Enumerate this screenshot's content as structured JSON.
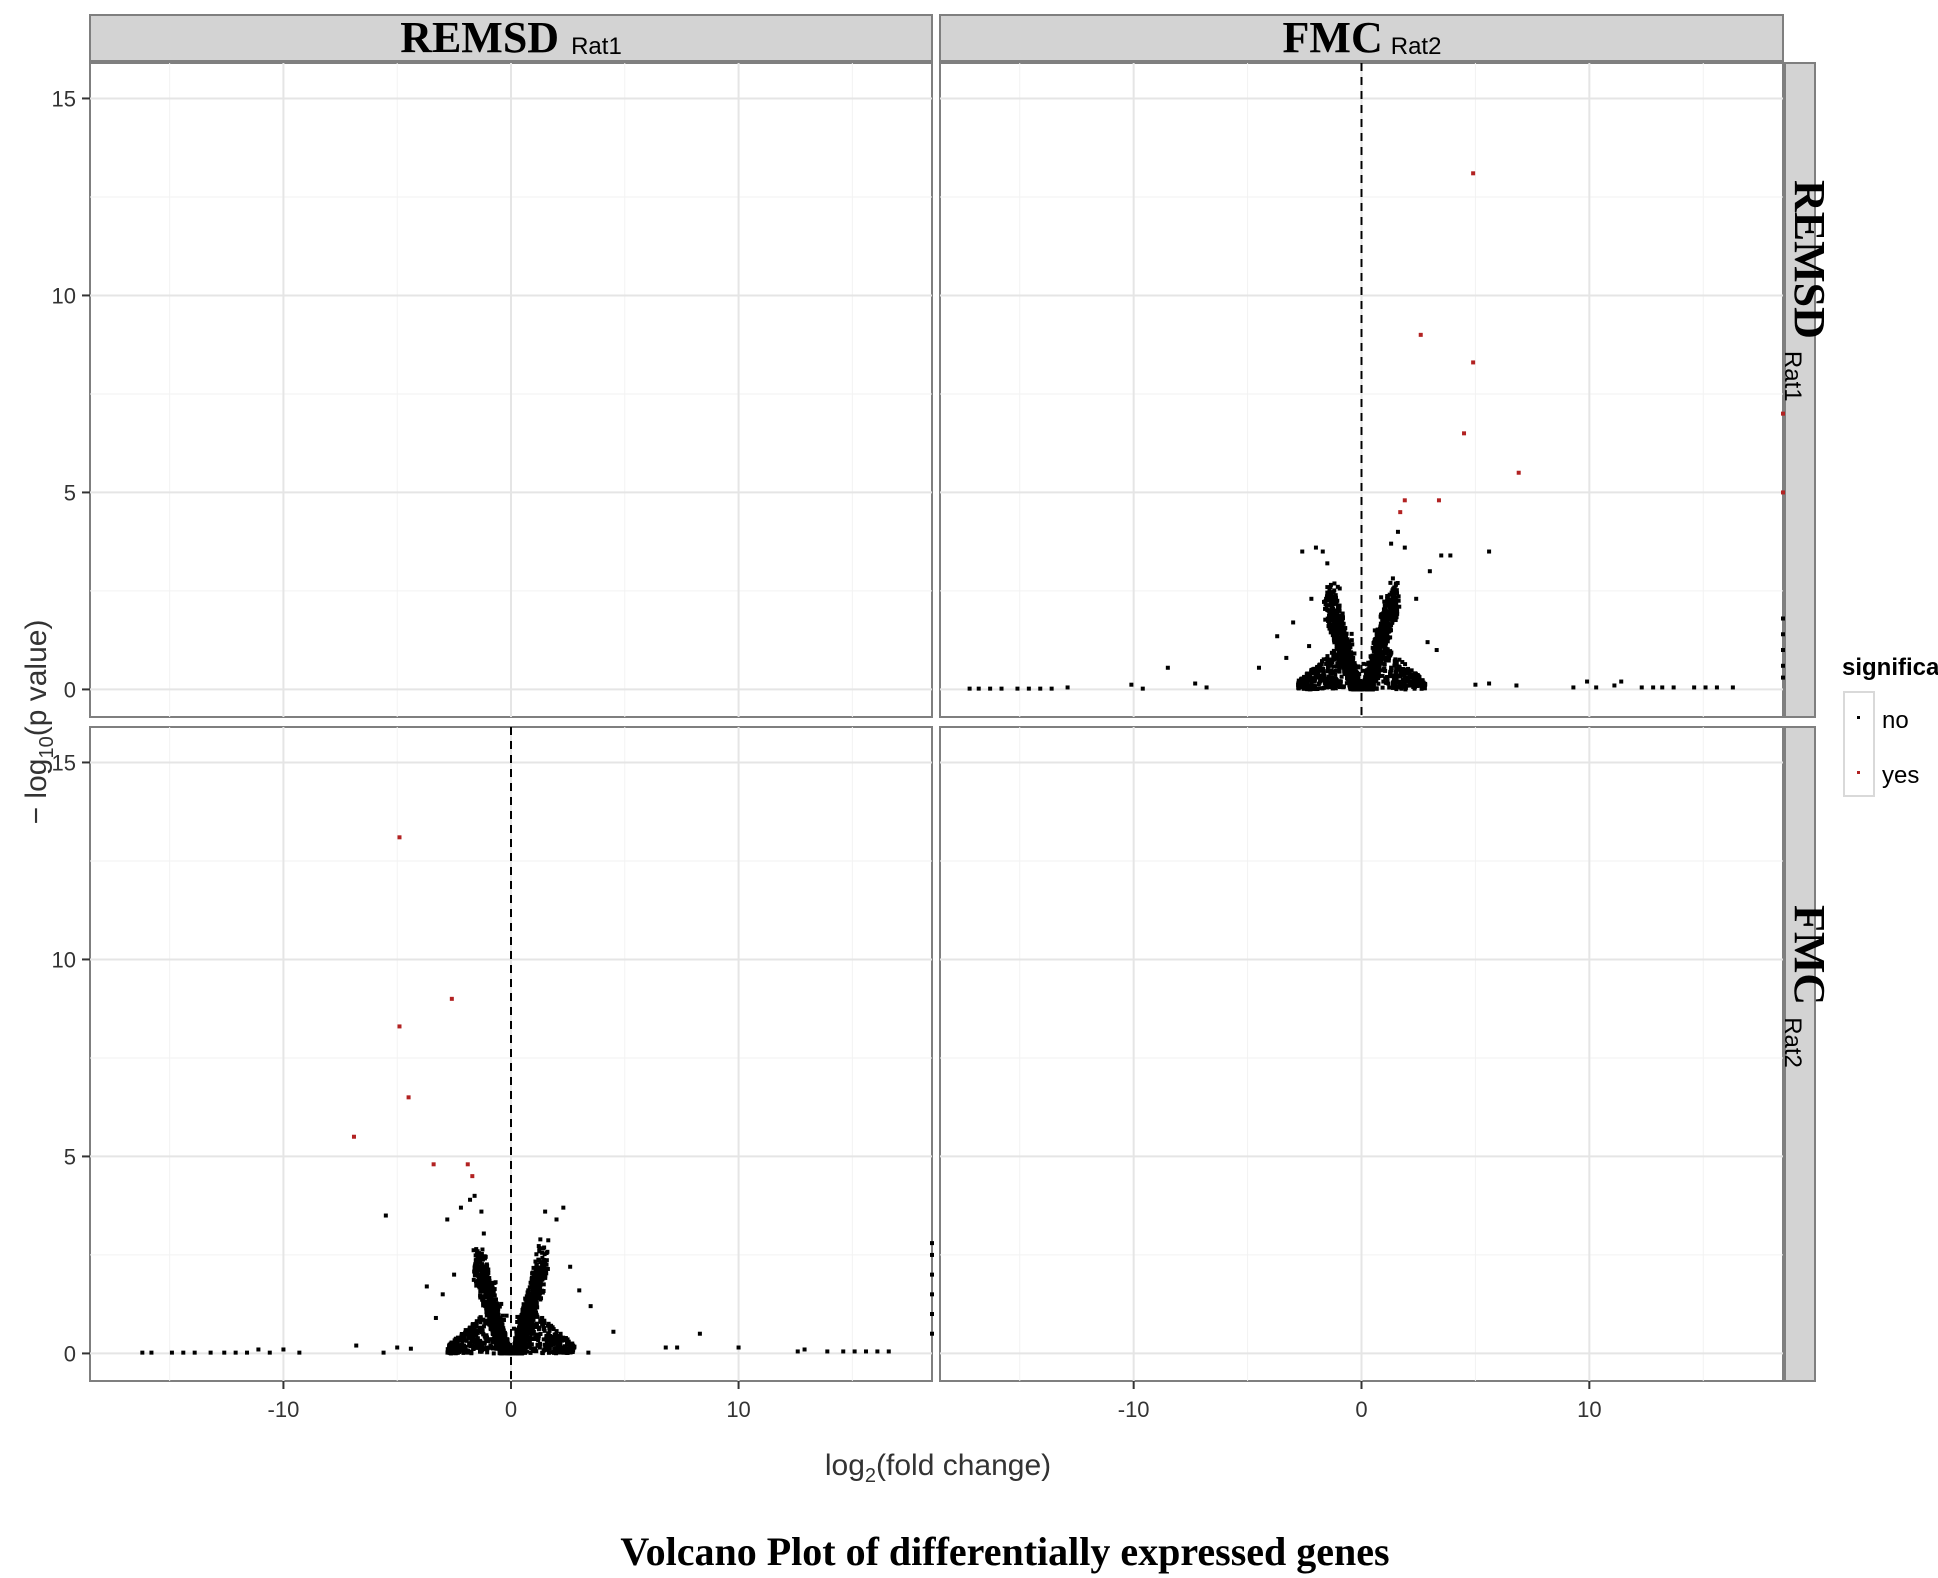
{
  "chart_data": {
    "type": "scatter",
    "caption": "Volcano Plot of differentially expressed genes",
    "xlabel_main": "log",
    "xlabel_sub": "2",
    "xlabel_rest": "(fold change)",
    "ylabel_main": "− log",
    "ylabel_sub": "10",
    "ylabel_rest": "(p value)",
    "xlim": [
      -18.5,
      18.5
    ],
    "ylim": [
      -0.7,
      15.9
    ],
    "x_ticks": [
      -10,
      0,
      10
    ],
    "x_tick_labels": [
      "-10",
      "0",
      "10"
    ],
    "y_ticks": [
      0,
      5,
      10,
      15
    ],
    "y_tick_labels": [
      "0",
      "5",
      "10",
      "15"
    ],
    "col_facets": [
      {
        "main": "REMSD",
        "sub": "Rat1"
      },
      {
        "main": "FMC",
        "sub": "Rat2"
      }
    ],
    "row_facets": [
      {
        "main": "REMSD",
        "sub": "Rat1"
      },
      {
        "main": "FMC",
        "sub": "Rat2"
      }
    ],
    "legend": {
      "title": "significant",
      "entries": [
        {
          "label": "no",
          "color": "#000000"
        },
        {
          "label": "yes",
          "color": "#b22222"
        }
      ],
      "position": "right"
    },
    "grid": true,
    "panels": [
      {
        "row": 0,
        "col": 1,
        "vline_x": 0,
        "significant": [
          [
            4.9,
            13.1
          ],
          [
            2.6,
            9.0
          ],
          [
            4.9,
            8.3
          ],
          [
            4.5,
            6.5
          ],
          [
            6.9,
            5.5
          ],
          [
            3.4,
            4.8
          ],
          [
            1.9,
            4.8
          ],
          [
            1.7,
            4.5
          ],
          [
            18.5,
            7.0
          ],
          [
            18.5,
            5.0
          ]
        ],
        "not_significant_sample": [
          [
            -17.2,
            0.02
          ],
          [
            -16.8,
            0.02
          ],
          [
            -16.3,
            0.02
          ],
          [
            -15.8,
            0.02
          ],
          [
            -15.1,
            0.02
          ],
          [
            -14.6,
            0.02
          ],
          [
            -14.1,
            0.02
          ],
          [
            -13.6,
            0.02
          ],
          [
            -12.9,
            0.05
          ],
          [
            -10.1,
            0.12
          ],
          [
            -9.6,
            0.02
          ],
          [
            -8.5,
            0.55
          ],
          [
            -7.3,
            0.15
          ],
          [
            -6.8,
            0.05
          ],
          [
            -4.5,
            0.55
          ],
          [
            -3.7,
            1.35
          ],
          [
            -3.3,
            0.8
          ],
          [
            -3.0,
            1.7
          ],
          [
            -2.6,
            3.5
          ],
          [
            -2.2,
            2.3
          ],
          [
            -2.0,
            3.6
          ],
          [
            -1.7,
            3.5
          ],
          [
            -1.5,
            3.2
          ],
          [
            -2.3,
            1.1
          ],
          [
            1.3,
            3.7
          ],
          [
            1.6,
            4.0
          ],
          [
            1.9,
            3.6
          ],
          [
            2.4,
            2.3
          ],
          [
            3.0,
            3.0
          ],
          [
            3.5,
            3.4
          ],
          [
            3.9,
            3.4
          ],
          [
            5.6,
            3.5
          ],
          [
            2.9,
            1.2
          ],
          [
            3.3,
            1.0
          ],
          [
            5.0,
            0.12
          ],
          [
            5.6,
            0.15
          ],
          [
            6.8,
            0.1
          ],
          [
            9.3,
            0.05
          ],
          [
            9.9,
            0.2
          ],
          [
            10.3,
            0.05
          ],
          [
            11.1,
            0.1
          ],
          [
            11.4,
            0.2
          ],
          [
            12.3,
            0.05
          ],
          [
            12.8,
            0.05
          ],
          [
            13.2,
            0.05
          ],
          [
            13.7,
            0.05
          ],
          [
            14.6,
            0.05
          ],
          [
            15.1,
            0.05
          ],
          [
            15.6,
            0.05
          ],
          [
            16.3,
            0.05
          ],
          [
            18.5,
            0.3
          ],
          [
            18.5,
            0.6
          ],
          [
            18.5,
            1.0
          ],
          [
            18.5,
            1.4
          ],
          [
            18.5,
            1.8
          ]
        ]
      },
      {
        "row": 1,
        "col": 0,
        "vline_x": 0,
        "significant": [
          [
            -4.9,
            13.1
          ],
          [
            -2.6,
            9.0
          ],
          [
            -4.9,
            8.3
          ],
          [
            -4.5,
            6.5
          ],
          [
            -6.9,
            5.5
          ],
          [
            -3.4,
            4.8
          ],
          [
            -1.9,
            4.8
          ],
          [
            -1.7,
            4.5
          ]
        ],
        "not_significant_sample": [
          [
            -16.2,
            0.02
          ],
          [
            -15.8,
            0.02
          ],
          [
            -14.9,
            0.02
          ],
          [
            -14.4,
            0.02
          ],
          [
            -13.9,
            0.02
          ],
          [
            -13.2,
            0.02
          ],
          [
            -12.6,
            0.02
          ],
          [
            -12.1,
            0.02
          ],
          [
            -11.6,
            0.02
          ],
          [
            -11.1,
            0.1
          ],
          [
            -10.6,
            0.02
          ],
          [
            -10.0,
            0.1
          ],
          [
            -9.3,
            0.02
          ],
          [
            -6.8,
            0.2
          ],
          [
            -5.6,
            0.02
          ],
          [
            -5.0,
            0.15
          ],
          [
            -4.4,
            0.12
          ],
          [
            -5.5,
            3.5
          ],
          [
            -3.7,
            1.7
          ],
          [
            -3.3,
            0.9
          ],
          [
            -3.0,
            1.5
          ],
          [
            -2.8,
            3.4
          ],
          [
            -2.5,
            2.0
          ],
          [
            -2.2,
            3.7
          ],
          [
            -1.8,
            3.9
          ],
          [
            -1.6,
            4.0
          ],
          [
            -1.3,
            3.6
          ],
          [
            1.5,
            3.6
          ],
          [
            2.0,
            3.4
          ],
          [
            2.3,
            3.7
          ],
          [
            2.6,
            2.2
          ],
          [
            3.0,
            1.6
          ],
          [
            3.5,
            1.2
          ],
          [
            3.4,
            0.02
          ],
          [
            4.5,
            0.55
          ],
          [
            6.8,
            0.15
          ],
          [
            7.3,
            0.15
          ],
          [
            8.3,
            0.5
          ],
          [
            10.0,
            0.15
          ],
          [
            12.6,
            0.05
          ],
          [
            12.9,
            0.1
          ],
          [
            13.9,
            0.05
          ],
          [
            14.6,
            0.05
          ],
          [
            15.1,
            0.05
          ],
          [
            15.6,
            0.05
          ],
          [
            16.1,
            0.05
          ],
          [
            16.6,
            0.05
          ],
          [
            18.5,
            0.5
          ],
          [
            18.5,
            1.0
          ],
          [
            18.5,
            1.5
          ],
          [
            18.5,
            2.0
          ],
          [
            18.5,
            2.5
          ],
          [
            18.5,
            2.8
          ]
        ]
      }
    ]
  }
}
